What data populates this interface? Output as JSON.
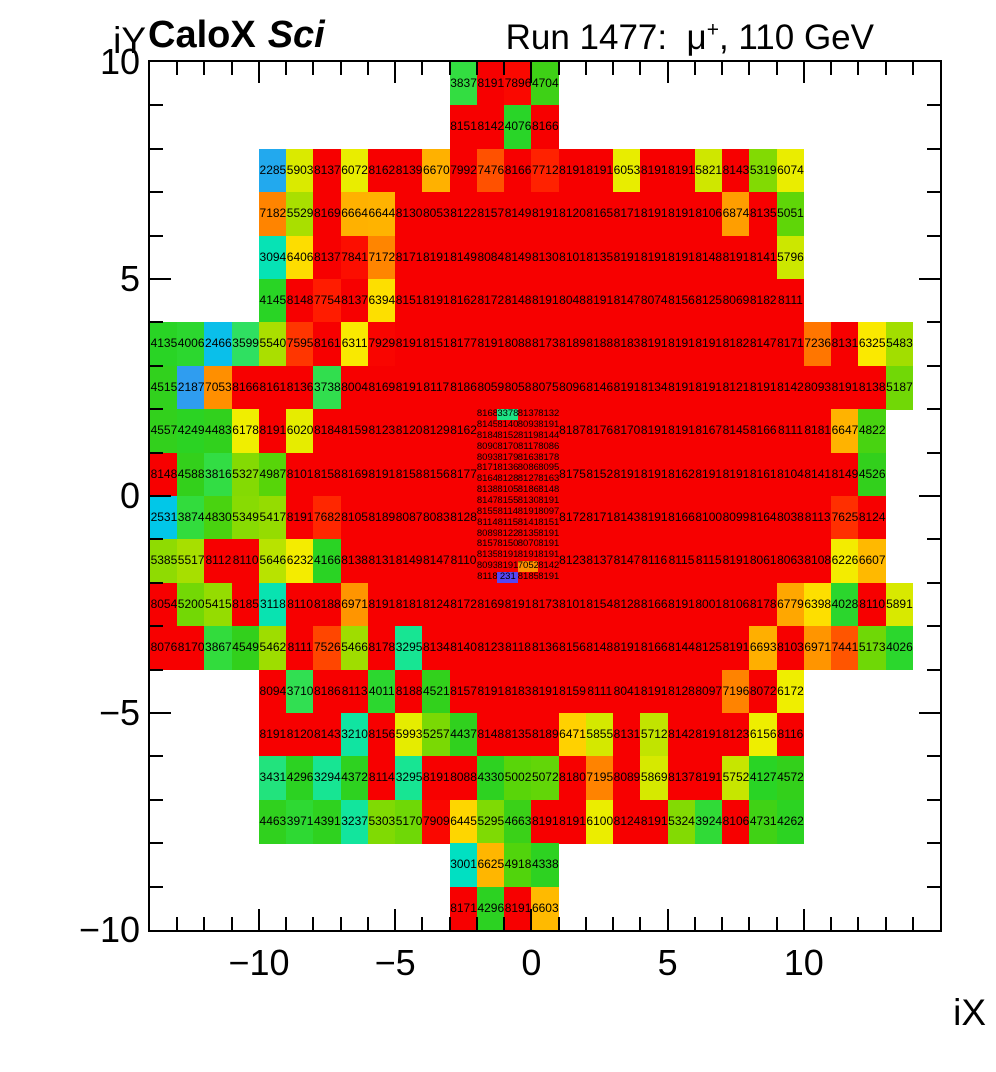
{
  "header": {
    "title_bold": "CaloX",
    "title_italic": "Sci",
    "run_title": {
      "prefix": "Run 1477:  ",
      "mu": "μ",
      "sup": "+",
      "suffix": ", 110 GeV"
    }
  },
  "axes": {
    "x_label": "iX",
    "y_label": "iY",
    "x_range": [
      -14,
      15
    ],
    "y_range": [
      -10,
      10
    ],
    "x_major_ticks": [
      -10,
      -5,
      0,
      5,
      10
    ],
    "x_tick_labels": [
      "−10",
      "−5",
      "0",
      "5",
      "10"
    ],
    "y_major_ticks": [
      10,
      5,
      0,
      -5,
      -10
    ],
    "y_tick_labels": [
      "10",
      "5",
      "0",
      "−5",
      "−10"
    ],
    "grid": false
  },
  "chart_data": {
    "type": "heatmap",
    "title": "CaloX Sci  Run 1477: mu+, 110 GeV",
    "zmin": 0,
    "zmax": 8191,
    "palette": [
      [
        0.0,
        "#5a3cf5"
      ],
      [
        0.267,
        "#2f9df0"
      ],
      [
        0.31,
        "#00c8e8"
      ],
      [
        0.37,
        "#00e2c0"
      ],
      [
        0.4,
        "#16e596"
      ],
      [
        0.44,
        "#2fe060"
      ],
      [
        0.47,
        "#33dd3f"
      ],
      [
        0.5,
        "#28d426"
      ],
      [
        0.56,
        "#33d01b"
      ],
      [
        0.61,
        "#58d509"
      ],
      [
        0.65,
        "#83da03"
      ],
      [
        0.67,
        "#a3de00"
      ],
      [
        0.7,
        "#c4e500"
      ],
      [
        0.73,
        "#e4ec00"
      ],
      [
        0.755,
        "#f0ee00"
      ],
      [
        0.775,
        "#fce800"
      ],
      [
        0.79,
        "#ffd100"
      ],
      [
        0.81,
        "#ffb400"
      ],
      [
        0.85,
        "#ff9600"
      ],
      [
        0.88,
        "#ff8200"
      ],
      [
        0.885,
        "#ff7000"
      ],
      [
        0.915,
        "#ff4e00"
      ],
      [
        0.93,
        "#ff3000"
      ],
      [
        0.945,
        "#ff1e00"
      ],
      [
        0.96,
        "#fb0b00"
      ],
      [
        0.975,
        "#f70000"
      ],
      [
        1.0,
        "#f70000"
      ]
    ],
    "rows": [
      {
        "y": 9,
        "x_start": -3,
        "values": [
          3837,
          8191,
          7896,
          4704
        ]
      },
      {
        "y": 8,
        "x_start": -3,
        "values": [
          8151,
          8142,
          4076,
          8166
        ]
      },
      {
        "y": 7,
        "x_start": -10,
        "values": [
          2285,
          5903,
          8137,
          6072,
          8162,
          8139,
          6670,
          7992,
          7476,
          8166,
          7712,
          8191,
          8191,
          6053,
          8191,
          8191,
          5821,
          8143,
          5319,
          6074
        ]
      },
      {
        "y": 6,
        "x_start": -10,
        "values": [
          7182,
          5529,
          8169,
          6664,
          6644,
          8130,
          8053,
          8122,
          8157,
          8149,
          8191,
          8120,
          8165,
          8171,
          8191,
          8191,
          8106,
          6874,
          8135,
          5051
        ]
      },
      {
        "y": 5,
        "x_start": -10,
        "values": [
          3094,
          6406,
          8137,
          7841,
          7172,
          8171,
          8191,
          8149,
          8084,
          8149,
          8130,
          8101,
          8135,
          8191,
          8191,
          8191,
          8148,
          8191,
          8141,
          5796
        ]
      },
      {
        "y": 4,
        "x_start": -10,
        "values": [
          4145,
          8148,
          7754,
          8137,
          6394,
          8151,
          8191,
          8162,
          8172,
          8148,
          8191,
          8048,
          8191,
          8147,
          8074,
          8156,
          8125,
          8069,
          8182,
          8111
        ]
      },
      {
        "y": 3,
        "x_start": -14,
        "values": [
          4135,
          4006,
          2466,
          3599,
          5540,
          7595,
          8161,
          6311,
          7929,
          8191,
          8151,
          8177,
          8191,
          8088,
          8173,
          8189,
          8188,
          8183,
          8191,
          8191,
          8191,
          8182,
          8147,
          8171,
          7236,
          8131,
          6325,
          5483
        ]
      },
      {
        "y": 2,
        "x_start": -14,
        "values": [
          4515,
          2187,
          7053,
          8166,
          8161,
          8136,
          3738,
          8004,
          8169,
          8191,
          8117,
          8186,
          8059,
          8058,
          8075,
          8096,
          8146,
          8191,
          8134,
          8191,
          8191,
          8121,
          8191,
          8142,
          8093,
          8191,
          8138,
          5187
        ]
      },
      {
        "y": 1,
        "x_start": -14,
        "values": [
          4557,
          4249,
          4483,
          6178,
          8191,
          6020,
          8184,
          8159,
          8123,
          8120,
          8129,
          8162
        ]
      },
      {
        "y": 1,
        "x_start": 1,
        "values": [
          8187,
          8176,
          8170,
          8191,
          8191,
          8167,
          8145,
          8166,
          8111,
          8181,
          6647,
          4822
        ]
      },
      {
        "y": 0,
        "x_start": -14,
        "values": [
          8148,
          4588,
          3816,
          5327,
          4987,
          8101,
          8158,
          8169,
          8191,
          8158,
          8156,
          8177
        ]
      },
      {
        "y": 0,
        "x_start": 1,
        "values": [
          8175,
          8152,
          8191,
          8191,
          8162,
          8191,
          8191,
          8161,
          8104,
          8141,
          8149,
          4526
        ]
      },
      {
        "y": -1,
        "x_start": -14,
        "values": [
          2531,
          3874,
          4830,
          5349,
          5417,
          8191,
          7682,
          8105,
          8189,
          8087,
          8083,
          8128
        ]
      },
      {
        "y": -1,
        "x_start": 1,
        "values": [
          8172,
          8171,
          8143,
          8191,
          8166,
          8100,
          8099,
          8164,
          8038,
          8113,
          7625,
          8124
        ]
      },
      {
        "y": -2,
        "x_start": -14,
        "values": [
          5385,
          5517,
          8112,
          8110,
          5646,
          6232,
          4166,
          8138,
          8131,
          8149,
          8147,
          8110
        ]
      },
      {
        "y": -2,
        "x_start": 1,
        "values": [
          8123,
          8137,
          8147,
          8116,
          8115,
          8115,
          8191,
          8061,
          8063,
          8108,
          6226,
          6607
        ]
      },
      {
        "y": -3,
        "x_start": -14,
        "values": [
          8054,
          5200,
          5415,
          8185,
          3118,
          8110,
          8188,
          6971,
          8191,
          8181,
          8124,
          8172,
          8169,
          8191,
          8173,
          8101,
          8154,
          8128,
          8166,
          8191,
          8001,
          8106,
          8178,
          6779,
          6398,
          4028,
          8110,
          5891
        ]
      },
      {
        "y": -4,
        "x_start": -14,
        "values": [
          8076,
          8170,
          3867,
          4549,
          5462,
          8111,
          7526,
          5466,
          8178,
          3295,
          8134,
          8140,
          8123,
          8118,
          8136,
          8156,
          8148,
          8191,
          8166,
          8144,
          8125,
          8191,
          6693,
          8103,
          6971,
          7441,
          5173,
          4026
        ]
      },
      {
        "y": -5,
        "x_start": -10,
        "values": [
          8094,
          3710,
          8186,
          8113,
          4011,
          8188,
          4521,
          8157,
          8191,
          8183,
          8191,
          8159,
          8111,
          8041,
          8191,
          8128,
          8097,
          7196,
          8072,
          6172
        ]
      },
      {
        "y": -6,
        "x_start": -10,
        "values": [
          8191,
          8120,
          8143,
          3210,
          8156,
          5993,
          5257,
          4437,
          8148,
          8135,
          8189,
          6471,
          5855,
          8131,
          5712,
          8142,
          8191,
          8123,
          6156,
          8116
        ]
      },
      {
        "y": -7,
        "x_start": -10,
        "values": [
          3431,
          4296,
          3294,
          4372,
          8114,
          3295,
          8191,
          8088,
          4330,
          5002,
          5072,
          8180,
          7195,
          8089,
          5869,
          8137,
          8191,
          5752,
          4127,
          4572
        ]
      },
      {
        "y": -8,
        "x_start": -10,
        "values": [
          4463,
          3971,
          4391,
          3237,
          5303,
          5170,
          7909,
          6445,
          5295,
          4663,
          8191,
          8191,
          6100,
          8124,
          8191,
          5324,
          3924,
          8106,
          4731,
          4262
        ]
      },
      {
        "y": -9,
        "x_start": -3,
        "values": [
          3001,
          6625,
          4918,
          4338
        ]
      },
      {
        "y": -10,
        "x_start": -3,
        "values": [
          8171,
          4296,
          8191,
          6603
        ]
      }
    ],
    "fine_block": {
      "x_low": -2,
      "x_high": 1,
      "y_low": -2,
      "y_high": 2,
      "cols": 4,
      "n_rows": 16,
      "rows_top_to_bottom": [
        [
          8168,
          3378,
          8137,
          8132
        ],
        [
          8145,
          8140,
          8093,
          8191
        ],
        [
          8184,
          8152,
          8119,
          8144
        ],
        [
          8090,
          8170,
          8117,
          8086
        ],
        [
          8093,
          8179,
          8163,
          8178
        ],
        [
          8171,
          8136,
          8086,
          8095
        ],
        [
          8164,
          8128,
          8127,
          8163
        ],
        [
          8138,
          8105,
          8186,
          8148
        ],
        [
          8147,
          8155,
          8130,
          8191
        ],
        [
          8155,
          8114,
          8191,
          8097
        ],
        [
          8114,
          8115,
          8141,
          8151
        ],
        [
          8089,
          8122,
          8135,
          8191
        ],
        [
          8157,
          8150,
          8070,
          8191
        ],
        [
          8135,
          8191,
          8191,
          8191
        ],
        [
          8093,
          8191,
          7052,
          8142
        ],
        [
          8118,
          231,
          8185,
          8191
        ]
      ]
    }
  }
}
